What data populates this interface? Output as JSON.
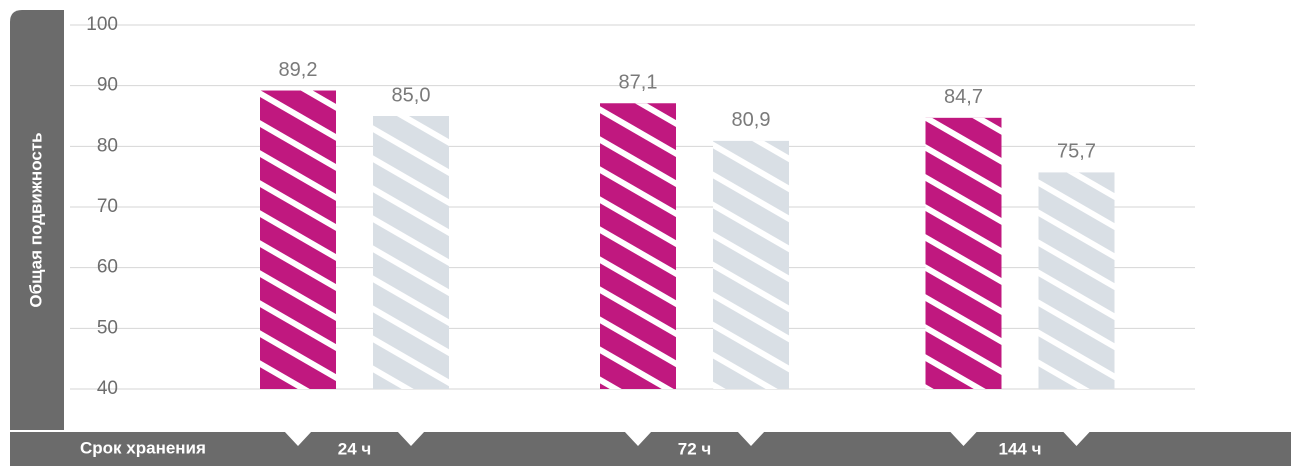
{
  "chart_data": {
    "type": "bar",
    "x_label": "Срок хранения",
    "y_label": "Общая подвижность",
    "categories": [
      "24 ч",
      "72 ч",
      "144 ч"
    ],
    "series": [
      {
        "color": "#c0187f",
        "values": [
          89.2,
          87.1,
          84.7
        ],
        "value_labels": [
          "89,2",
          "87,1",
          "84,7"
        ]
      },
      {
        "color": "#d9dfe5",
        "values": [
          85.0,
          80.9,
          75.7
        ],
        "value_labels": [
          "85,0",
          "80,9",
          "75,7"
        ]
      }
    ],
    "ylim": [
      40,
      100
    ],
    "yticks": [
      40,
      50,
      60,
      70,
      80,
      90,
      100
    ],
    "grid": true,
    "hatch": true
  }
}
